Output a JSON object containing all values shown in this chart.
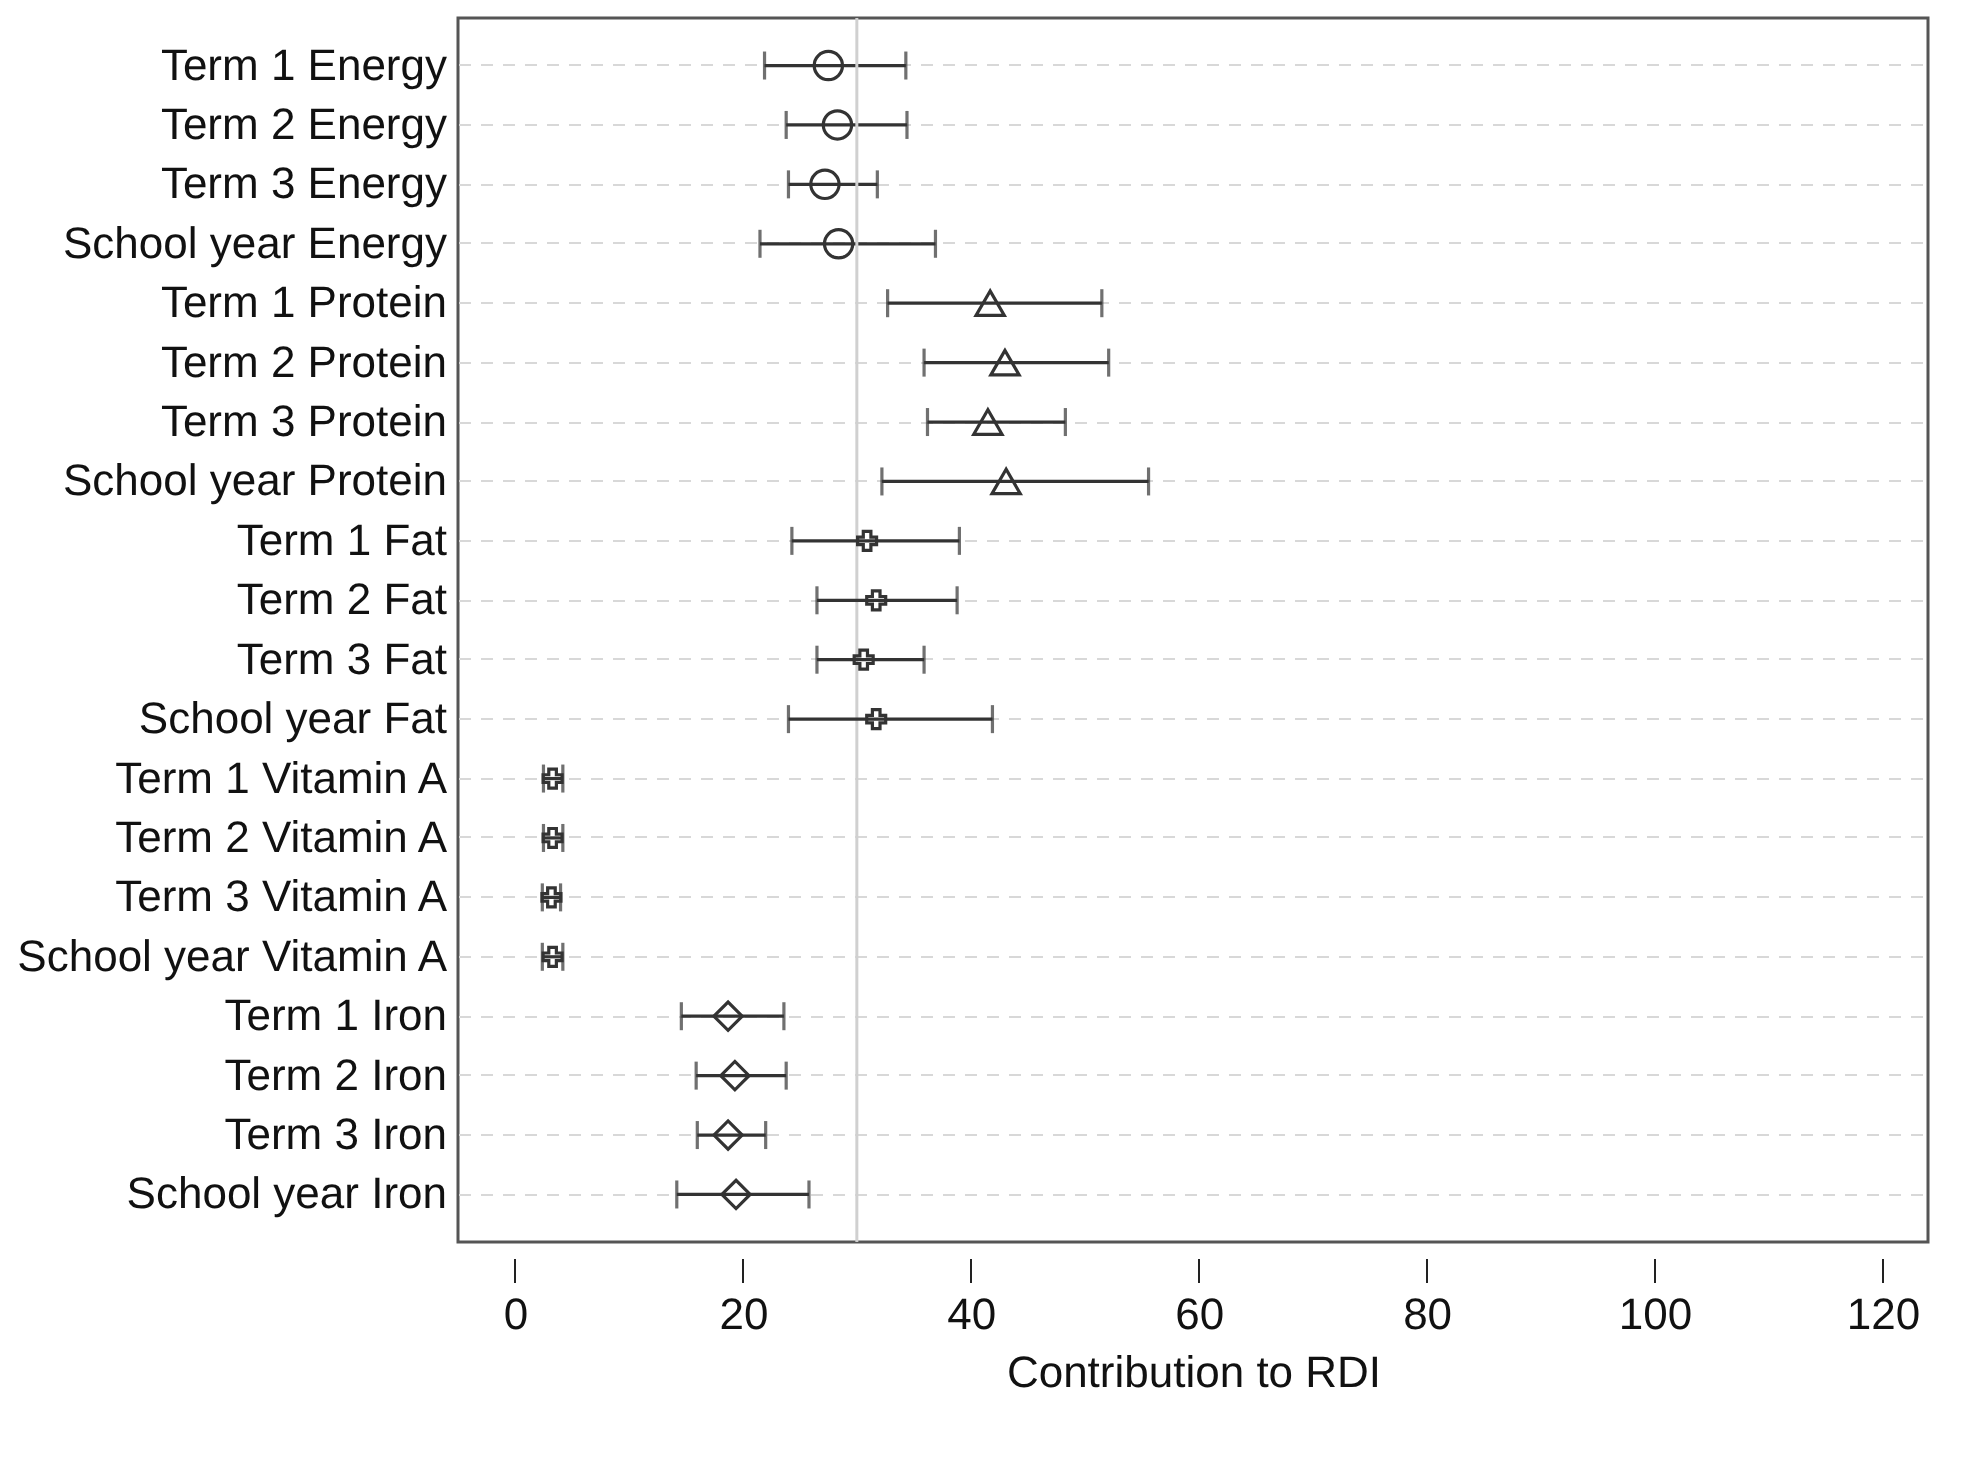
{
  "chart_data": {
    "type": "scatter",
    "orientation": "horizontal",
    "xlabel": "Contribution to RDI",
    "categories": [
      "Term 1 Energy",
      "Term 2 Energy",
      "Term 3 Energy",
      "School year Energy",
      "Term 1 Protein",
      "Term 2 Protein",
      "Term 3 Protein",
      "School year Protein",
      "Term 1 Fat",
      "Term 2 Fat",
      "Term 3 Fat",
      "School year Fat",
      "Term 1 Vitamin A",
      "Term 2 Vitamin A",
      "Term 3 Vitamin A",
      "School year Vitamin A",
      "Term 1 Iron",
      "Term 2 Iron",
      "Term 3 Iron",
      "School year Iron"
    ],
    "series": [
      {
        "color": "#333333",
        "marker": "circle",
        "values": [
          27.5,
          28.3,
          27.2,
          28.4,
          null,
          null,
          null,
          null,
          null,
          null,
          null,
          null,
          null,
          null,
          null,
          null,
          null,
          null,
          null,
          null
        ],
        "errors": [
          [
            21.9,
            34.3
          ],
          [
            23.8,
            34.4
          ],
          [
            24.0,
            31.8
          ],
          [
            21.5,
            36.9
          ],
          null,
          null,
          null,
          null,
          null,
          null,
          null,
          null,
          null,
          null,
          null,
          null,
          null,
          null,
          null,
          null
        ]
      },
      {
        "color": "#333333",
        "marker": "triangle",
        "values": [
          null,
          null,
          null,
          null,
          41.7,
          43.0,
          41.5,
          43.1,
          null,
          null,
          null,
          null,
          null,
          null,
          null,
          null,
          null,
          null,
          null,
          null
        ],
        "errors": [
          null,
          null,
          null,
          null,
          [
            32.7,
            51.5
          ],
          [
            35.9,
            52.1
          ],
          [
            36.2,
            48.3
          ],
          [
            32.2,
            55.6
          ],
          null,
          null,
          null,
          null,
          null,
          null,
          null,
          null,
          null,
          null,
          null,
          null
        ]
      },
      {
        "color": "#333333",
        "marker": "cross",
        "values": [
          null,
          null,
          null,
          null,
          null,
          null,
          null,
          null,
          30.9,
          31.7,
          30.6,
          31.7,
          null,
          null,
          null,
          null,
          null,
          null,
          null,
          null
        ],
        "errors": [
          null,
          null,
          null,
          null,
          null,
          null,
          null,
          null,
          [
            24.3,
            39.0
          ],
          [
            26.5,
            38.8
          ],
          [
            26.5,
            35.9
          ],
          [
            24.0,
            41.9
          ],
          null,
          null,
          null,
          null,
          null,
          null,
          null,
          null
        ]
      },
      {
        "color": "#333333",
        "marker": "cross",
        "values": [
          null,
          null,
          null,
          null,
          null,
          null,
          null,
          null,
          null,
          null,
          null,
          null,
          3.3,
          3.3,
          3.2,
          3.3,
          null,
          null,
          null,
          null
        ],
        "errors": [
          null,
          null,
          null,
          null,
          null,
          null,
          null,
          null,
          null,
          null,
          null,
          null,
          [
            2.5,
            4.2
          ],
          [
            2.5,
            4.2
          ],
          [
            2.4,
            4.0
          ],
          [
            2.4,
            4.2
          ],
          null,
          null,
          null,
          null
        ]
      },
      {
        "color": "#333333",
        "marker": "diamond",
        "values": [
          null,
          null,
          null,
          null,
          null,
          null,
          null,
          null,
          null,
          null,
          null,
          null,
          null,
          null,
          null,
          null,
          18.7,
          19.3,
          18.7,
          19.4
        ],
        "errors": [
          null,
          null,
          null,
          null,
          null,
          null,
          null,
          null,
          null,
          null,
          null,
          null,
          null,
          null,
          null,
          null,
          [
            14.6,
            23.6
          ],
          [
            15.9,
            23.8
          ],
          [
            16.0,
            22.0
          ],
          [
            14.2,
            25.8
          ]
        ]
      }
    ],
    "xlim": [
      -5,
      124
    ],
    "xticks": [
      0,
      20,
      40,
      60,
      80,
      100,
      120
    ],
    "grid": "y",
    "ref_lines": [
      {
        "axis": "x",
        "value": 30,
        "color": "#d0d0d0",
        "line_style": "solid"
      }
    ]
  }
}
